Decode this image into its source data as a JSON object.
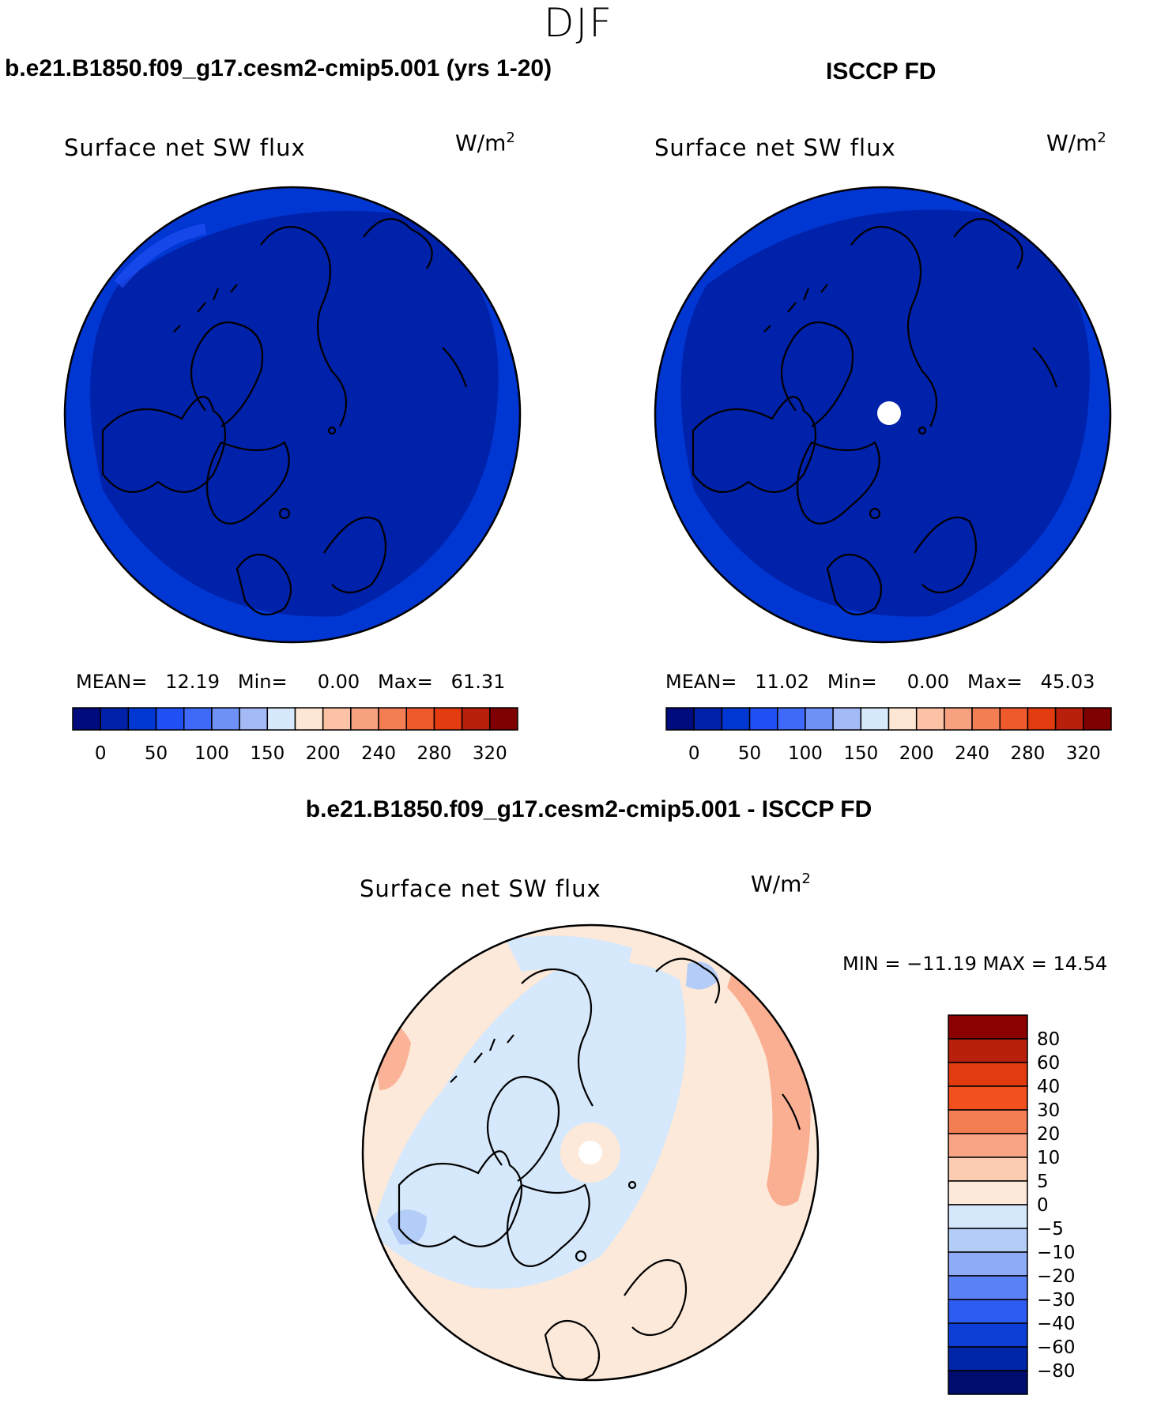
{
  "season": "DJF",
  "panels": [
    {
      "id": "model",
      "title": "b.e21.B1850.f09_g17.cesm2-cmip5.001 (yrs 1-20)",
      "variable": "Surface net SW flux",
      "units": "W/m",
      "units_sup": "2",
      "mean_label": "MEAN=",
      "mean": "12.19",
      "min_label": "Min=",
      "min": "0.00",
      "max_label": "Max=",
      "max": "61.31"
    },
    {
      "id": "obs",
      "title": "ISCCP FD",
      "variable": "Surface net SW flux",
      "units": "W/m",
      "units_sup": "2",
      "mean_label": "MEAN=",
      "mean": "11.02",
      "min_label": "Min=",
      "min": "0.00",
      "max_label": "Max=",
      "max": "45.03"
    },
    {
      "id": "diff",
      "title": "b.e21.B1850.f09_g17.cesm2-cmip5.001 - ISCCP FD",
      "variable": "Surface net SW flux",
      "units": "W/m",
      "units_sup": "2",
      "minmax": "MIN = −11.19 MAX =  14.54"
    }
  ],
  "chart_data": [
    {
      "type": "heatmap",
      "projection": "north polar stereographic",
      "title": "b.e21.B1850.f09_g17.cesm2-cmip5.001 (yrs 1-20)",
      "variable": "Surface net SW flux",
      "units": "W/m2",
      "stats": {
        "mean": 12.19,
        "min": 0.0,
        "max": 61.31
      },
      "colorbar": {
        "orientation": "horizontal",
        "tick_labels": [
          "0",
          "50",
          "100",
          "150",
          "200",
          "240",
          "280",
          "320"
        ],
        "colors": [
          "#000c7d",
          "#0021a9",
          "#0037d3",
          "#1f4ff5",
          "#3f69f8",
          "#6e91f7",
          "#a3baf7",
          "#d6e8fb",
          "#fde6d3",
          "#fbc2a6",
          "#f8a180",
          "#f47e54",
          "#ef5a2c",
          "#e23b0f",
          "#b8200b",
          "#7f0000"
        ]
      },
      "field_description_colors": {
        "dominant": "#0021a9",
        "rim": "#0037d3"
      }
    },
    {
      "type": "heatmap",
      "projection": "north polar stereographic",
      "title": "ISCCP FD",
      "variable": "Surface net SW flux",
      "units": "W/m2",
      "stats": {
        "mean": 11.02,
        "min": 0.0,
        "max": 45.03
      },
      "colorbar": {
        "orientation": "horizontal",
        "tick_labels": [
          "0",
          "50",
          "100",
          "150",
          "200",
          "240",
          "280",
          "320"
        ],
        "colors": [
          "#000c7d",
          "#0021a9",
          "#0037d3",
          "#1f4ff5",
          "#3f69f8",
          "#6e91f7",
          "#a3baf7",
          "#d6e8fb",
          "#fde6d3",
          "#fbc2a6",
          "#f8a180",
          "#f47e54",
          "#ef5a2c",
          "#e23b0f",
          "#b8200b",
          "#7f0000"
        ]
      },
      "missing_pole": true
    },
    {
      "type": "heatmap",
      "projection": "north polar stereographic",
      "title": "b.e21.B1850.f09_g17.cesm2-cmip5.001 - ISCCP FD",
      "variable": "Surface net SW flux",
      "units": "W/m2",
      "stats": {
        "min": -11.19,
        "max": 14.54
      },
      "colorbar": {
        "orientation": "vertical",
        "tick_labels": [
          "80",
          "60",
          "40",
          "30",
          "20",
          "10",
          "5",
          "0",
          "−5",
          "−10",
          "−20",
          "−30",
          "−40",
          "−60",
          "−80"
        ],
        "colors": [
          "#8b0000",
          "#b8200b",
          "#e23b0f",
          "#f2501e",
          "#f47e54",
          "#f9a585",
          "#fbcbb2",
          "#fde9d9",
          "#d6e8fb",
          "#b3cdf8",
          "#8eabf6",
          "#5b82f5",
          "#2d5cf1",
          "#0d3fd6",
          "#0026a8",
          "#000c6e"
        ]
      },
      "missing_pole": true
    }
  ]
}
